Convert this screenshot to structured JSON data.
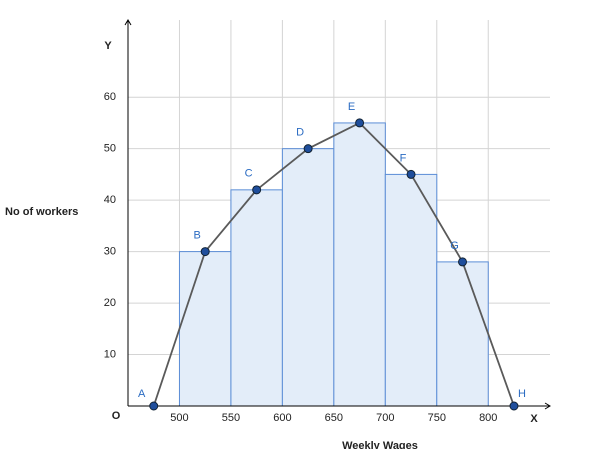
{
  "chart_data": {
    "type": "histogram",
    "xlabel": "Weekly Wages",
    "ylabel": "No of workers",
    "x_axis_name": "X",
    "y_axis_name": "Y",
    "origin_label": "O",
    "bins": [
      500,
      550,
      600,
      650,
      700,
      750,
      800
    ],
    "values": [
      30,
      42,
      50,
      55,
      45,
      28
    ],
    "color": "#e3edf9",
    "edge_color": "#5b8dd6",
    "polygon": {
      "x": [
        475,
        525,
        575,
        625,
        675,
        725,
        775,
        825
      ],
      "values": [
        0,
        30,
        42,
        50,
        55,
        45,
        28,
        0
      ],
      "labels": [
        "A",
        "B",
        "C",
        "D",
        "E",
        "F",
        "G",
        "H"
      ],
      "color": "#5a5a5a",
      "point_color": "#1f4e9c"
    },
    "xlim": [
      450,
      860
    ],
    "ylim": [
      0,
      75
    ],
    "xticks": [
      500,
      550,
      600,
      650,
      700,
      750,
      800
    ],
    "yticks": [
      10,
      20,
      30,
      40,
      50,
      60
    ],
    "grid": true
  }
}
